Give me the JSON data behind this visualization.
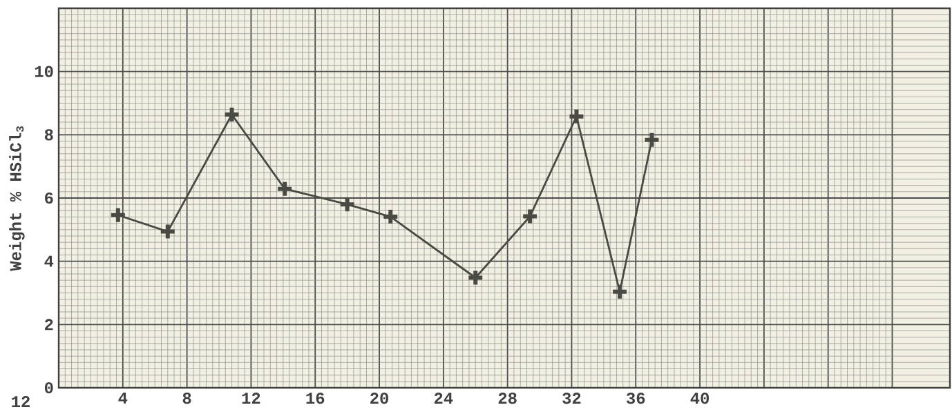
{
  "chart_data": {
    "type": "line",
    "ylabel": "Weight % HSiCl$_{3}$",
    "annotations": [
      "12"
    ],
    "x": [
      3.7,
      6.8,
      10.8,
      14.1,
      18.0,
      20.7,
      26.0,
      29.4,
      32.3,
      35.0,
      37.0
    ],
    "series": [
      {
        "color": "#4a4a45",
        "values": [
          5.46,
          4.94,
          8.64,
          6.29,
          5.8,
          5.41,
          3.48,
          5.42,
          8.58,
          3.04,
          7.84
        ]
      }
    ],
    "xlim": [
      0,
      55.6
    ],
    "ylim": [
      0,
      12
    ],
    "xticks": [
      {
        "value": 0,
        "label": null
      },
      4,
      8,
      12,
      16,
      20,
      24,
      28,
      32,
      36,
      40,
      {
        "value": 44,
        "label": null
      },
      {
        "value": 48,
        "label": null
      },
      {
        "value": 52,
        "label": null
      }
    ],
    "yticks": [
      0,
      2,
      4,
      6,
      8,
      10,
      {
        "value": 12,
        "label": null
      }
    ],
    "grid": true,
    "marker": "cross",
    "line_style": "solid"
  }
}
